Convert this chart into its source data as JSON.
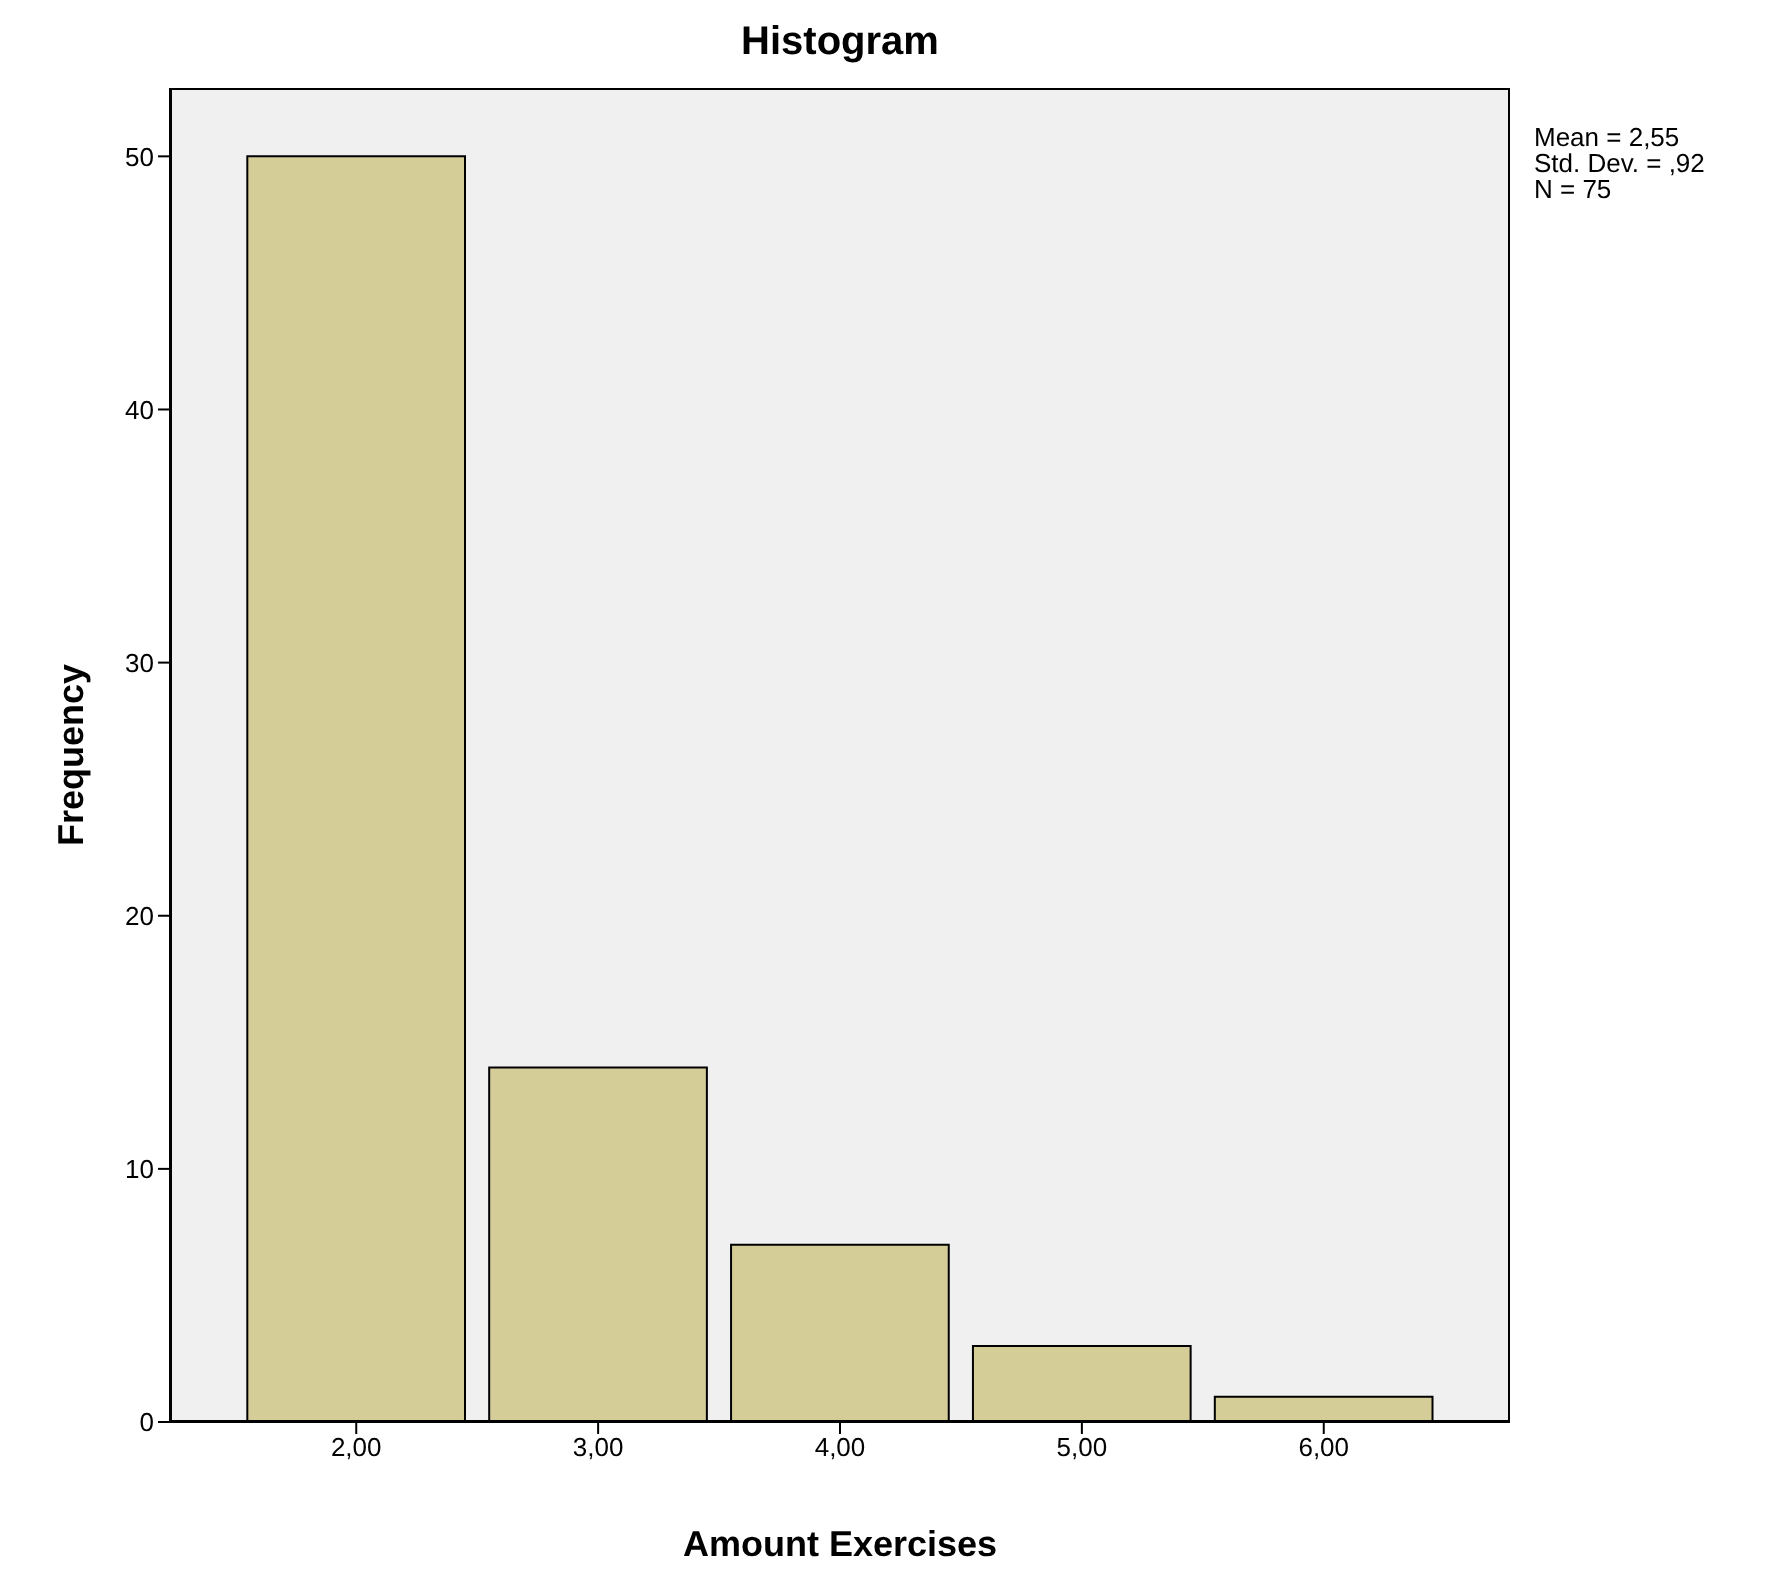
{
  "chart_data": {
    "type": "histogram",
    "title": "Histogram",
    "xlabel": "Amount Exercises",
    "ylabel": "Frequency",
    "bins": [
      1.5,
      2.5,
      3.5,
      4.5,
      5.5,
      6.5
    ],
    "values": [
      50,
      14,
      7,
      3,
      1
    ],
    "color": "#d4cd98",
    "xlim": [
      1.23,
      6.77
    ],
    "xticks": [
      {
        "value": 2,
        "label": "2,00"
      },
      {
        "value": 3,
        "label": "3,00"
      },
      {
        "value": 4,
        "label": "4,00"
      },
      {
        "value": 5,
        "label": "5,00"
      },
      {
        "value": 6,
        "label": "6,00"
      }
    ],
    "ylim": [
      0,
      52.7
    ],
    "yticks": [
      0,
      10,
      20,
      30,
      40,
      50
    ],
    "grid": false,
    "annotations": [
      "Mean = 2,55",
      "Std. Dev. = ,92",
      "N = 75"
    ]
  }
}
